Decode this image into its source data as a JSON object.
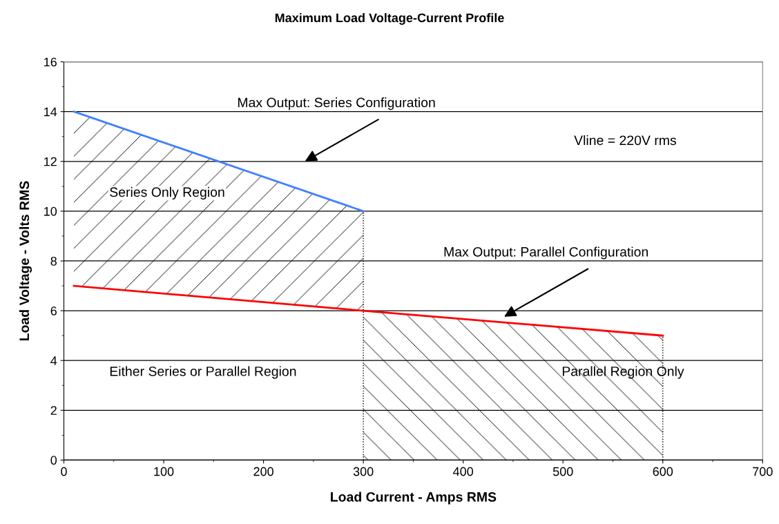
{
  "chart_data": {
    "type": "line",
    "title": "Maximum Load Voltage-Current Profile",
    "xlabel": "Load Current - Amps RMS",
    "ylabel": "Load Voltage - Volts RMS",
    "xlim": [
      0,
      700
    ],
    "xticks": [
      0,
      100,
      200,
      300,
      400,
      500,
      600,
      700
    ],
    "ylim": [
      0,
      16
    ],
    "yticks": [
      0,
      2,
      4,
      6,
      8,
      10,
      12,
      14,
      16
    ],
    "grid": "y",
    "legend": false,
    "marker": "none",
    "series": [
      {
        "color": "#3f7fff",
        "x": [
          10,
          300
        ],
        "values": [
          14,
          10
        ],
        "lower": [
          7,
          6
        ],
        "upper": [
          14,
          10
        ]
      },
      {
        "color": "#ff0000",
        "x": [
          10,
          300,
          600
        ],
        "values": [
          7,
          6,
          5
        ]
      },
      {
        "color": "#000000",
        "line_style": "dotted",
        "x": [
          300,
          300
        ],
        "values": [
          0,
          10
        ]
      },
      {
        "color": "#000000",
        "line_style": "dotted",
        "x": [
          600,
          600
        ],
        "values": [
          0,
          5
        ]
      }
    ],
    "annotations": [
      "Max Output: Series Configuration",
      "Max Output: Parallel Configuration",
      "Vline = 220V rms",
      "Series Only Region",
      "Either Series or Parallel Region",
      "Parallel Region Only"
    ]
  }
}
